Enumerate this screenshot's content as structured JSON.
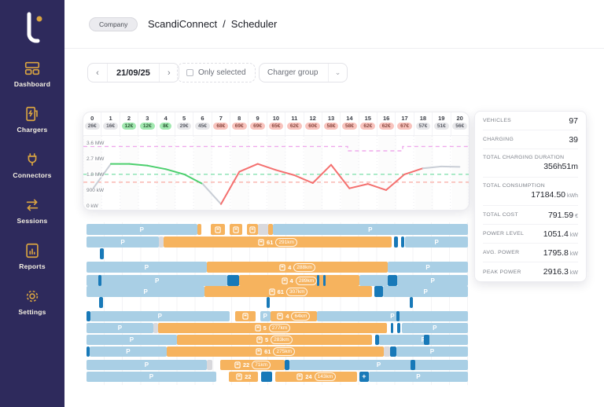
{
  "sidebar": {
    "logo_letter": "t",
    "items": [
      {
        "label": "Dashboard",
        "icon": "dashboard-icon"
      },
      {
        "label": "Chargers",
        "icon": "charger-icon"
      },
      {
        "label": "Connectors",
        "icon": "plug-icon"
      },
      {
        "label": "Sessions",
        "icon": "arrows-swap-icon"
      },
      {
        "label": "Reports",
        "icon": "report-icon"
      },
      {
        "label": "Settings",
        "icon": "gear-icon"
      }
    ]
  },
  "header": {
    "badge": "Company",
    "app_name": "ScandiConnect",
    "separator": "/",
    "page": "Scheduler"
  },
  "controls": {
    "prev": "‹",
    "next": "›",
    "date": "21/09/25",
    "only_selected_label": "Only selected",
    "charger_group_label": "Charger group",
    "chevron": "⌄"
  },
  "chart_data": {
    "type": "line",
    "title": "Hourly charging power schedule with electricity prices",
    "x_hours": [
      0,
      1,
      2,
      3,
      4,
      5,
      6,
      7,
      8,
      9,
      10,
      11,
      12,
      13,
      14,
      15,
      16,
      17,
      18,
      19,
      20
    ],
    "prices_eur": [
      "26€",
      "16€",
      "12€",
      "12€",
      "8€",
      "29€",
      "45€",
      "68€",
      "69€",
      "69€",
      "65€",
      "62€",
      "60€",
      "58€",
      "58€",
      "62€",
      "62€",
      "67€",
      "57€",
      "51€",
      "56€"
    ],
    "price_levels": [
      "neutral",
      "neutral",
      "low",
      "low",
      "low",
      "neutral",
      "neutral",
      "high",
      "high",
      "high",
      "high",
      "high",
      "high",
      "high",
      "high",
      "high",
      "high",
      "high",
      "neutral",
      "neutral",
      "neutral"
    ],
    "power_mw": [
      1.0,
      2.45,
      2.45,
      2.35,
      2.15,
      1.85,
      1.3,
      0.15,
      2.0,
      2.45,
      2.1,
      1.8,
      1.35,
      2.4,
      1.05,
      1.3,
      0.95,
      1.85,
      2.2,
      2.3,
      2.28
    ],
    "segment_colors": [
      "gray",
      "green",
      "green",
      "green",
      "green",
      "green",
      "gray",
      "red",
      "red",
      "red",
      "red",
      "red",
      "red",
      "red",
      "red",
      "red",
      "red",
      "red",
      "gray",
      "gray"
    ],
    "y_ticks": [
      "3.6 MW",
      "2.7 MW",
      "1.8 MW",
      "900 kW",
      "0 kW"
    ],
    "y_tick_values": [
      3.6,
      2.7,
      1.8,
      0.9,
      0
    ],
    "ylim": [
      0,
      4.05
    ],
    "grid": "vertical-dotted",
    "thresholds": {
      "green_dashed_mw": 1.85,
      "red_dashed_mw": 1.4
    },
    "limit_line_mw": [
      {
        "from": 0,
        "to": 14.4,
        "value": 3.45
      },
      {
        "from": 14.4,
        "to": 17.4,
        "value": 3.2
      },
      {
        "from": 17.4,
        "to": 21,
        "value": 3.45
      }
    ]
  },
  "stats": {
    "rows": [
      {
        "label": "VEHICLES",
        "value": "97",
        "unit": "",
        "two_line": false
      },
      {
        "label": "CHARGING",
        "value": "39",
        "unit": "",
        "two_line": false
      },
      {
        "label": "TOTAL CHARGING DURATION",
        "value": "356h51m",
        "unit": "",
        "two_line": true
      },
      {
        "label": "TOTAL CONSUMPTION",
        "value": "17184.50",
        "unit": "kWh",
        "two_line": true
      },
      {
        "label": "TOTAL COST",
        "value": "791.59",
        "unit": "€",
        "two_line": false
      },
      {
        "label": "POWER LEVEL",
        "value": "1051.4",
        "unit": "kW",
        "two_line": false
      },
      {
        "label": "AVG. POWER",
        "value": "1795.8",
        "unit": "kW",
        "two_line": false
      },
      {
        "label": "PEAK POWER",
        "value": "2916.3",
        "unit": "kW",
        "two_line": false
      }
    ]
  },
  "gantt": {
    "parked_label": "P",
    "rows": [
      {
        "segments": [
          {
            "t": "p",
            "s": 0,
            "e": 0.29,
            "label": "P"
          },
          {
            "t": "o",
            "s": 0.29,
            "e": 0.301
          },
          {
            "t": "oi",
            "s": 0.326,
            "e": 0.362
          },
          {
            "t": "oi",
            "s": 0.376,
            "e": 0.408
          },
          {
            "t": "oi",
            "s": 0.421,
            "e": 0.449
          },
          {
            "t": "g",
            "s": 0.449,
            "e": 0.476
          },
          {
            "t": "o",
            "s": 0.476,
            "e": 0.488
          },
          {
            "t": "p",
            "s": 0.488,
            "e": 1,
            "label": "P"
          }
        ]
      },
      {
        "segments": [
          {
            "t": "p",
            "s": 0,
            "e": 0.19,
            "label": "P"
          },
          {
            "t": "g",
            "s": 0.19,
            "e": 0.202
          },
          {
            "t": "ol",
            "s": 0.202,
            "e": 0.8,
            "num": "61",
            "km": "291km"
          },
          {
            "t": "d",
            "s": 0.806,
            "e": 0.816
          },
          {
            "t": "d",
            "s": 0.824,
            "e": 0.832
          },
          {
            "t": "p",
            "s": 0.836,
            "e": 1,
            "label": "P"
          }
        ]
      },
      {
        "segments": [
          {
            "t": "d",
            "s": 0.036,
            "e": 0.046
          }
        ]
      },
      {
        "segments": [
          {
            "t": "p",
            "s": 0,
            "e": 0.315,
            "label": "P"
          },
          {
            "t": "ol",
            "s": 0.315,
            "e": 0.79,
            "num": "4",
            "km": "288km"
          },
          {
            "t": "p",
            "s": 0.79,
            "e": 1,
            "label": "P"
          }
        ]
      },
      {
        "segments": [
          {
            "t": "p",
            "s": 0,
            "e": 0.37,
            "label": "P"
          },
          {
            "t": "d",
            "s": 0.031,
            "e": 0.04
          },
          {
            "t": "d",
            "s": 0.37,
            "e": 0.4
          },
          {
            "t": "ol",
            "s": 0.4,
            "e": 0.715,
            "num": "4",
            "km": "289km"
          },
          {
            "t": "d",
            "s": 0.605,
            "e": 0.611
          },
          {
            "t": "d",
            "s": 0.621,
            "e": 0.627
          },
          {
            "t": "b",
            "s": 0.715,
            "e": 0.79
          },
          {
            "t": "d",
            "s": 0.79,
            "e": 0.815
          },
          {
            "t": "p",
            "s": 0.815,
            "e": 1,
            "label": "P"
          }
        ]
      },
      {
        "segments": [
          {
            "t": "p",
            "s": 0,
            "e": 0.31,
            "label": "P"
          },
          {
            "t": "ol",
            "s": 0.31,
            "e": 0.748,
            "num": "61",
            "km": "307km"
          },
          {
            "t": "d",
            "s": 0.755,
            "e": 0.778
          },
          {
            "t": "p",
            "s": 0.778,
            "e": 1,
            "label": "P"
          }
        ]
      },
      {
        "segments": [
          {
            "t": "d",
            "s": 0.034,
            "e": 0.044
          },
          {
            "t": "d",
            "s": 0.472,
            "e": 0.48
          },
          {
            "t": "d",
            "s": 0.848,
            "e": 0.856
          }
        ]
      },
      {
        "segments": [
          {
            "t": "d",
            "s": 0,
            "e": 0.01
          },
          {
            "t": "p",
            "s": 0.01,
            "e": 0.375,
            "label": "P"
          },
          {
            "t": "oi",
            "s": 0.39,
            "e": 0.443
          },
          {
            "t": "p",
            "s": 0.455,
            "e": 0.482,
            "label": "P"
          },
          {
            "t": "ol",
            "s": 0.482,
            "e": 0.604,
            "num": "4",
            "km": "64km"
          },
          {
            "t": "p",
            "s": 0.604,
            "e": 1,
            "label": "P"
          },
          {
            "t": "d",
            "s": 0.812,
            "e": 0.82
          }
        ]
      },
      {
        "segments": [
          {
            "t": "p",
            "s": 0,
            "e": 0.175,
            "label": "P"
          },
          {
            "t": "g",
            "s": 0.175,
            "e": 0.188
          },
          {
            "t": "ol",
            "s": 0.188,
            "e": 0.787,
            "num": "5",
            "km": "277km"
          },
          {
            "t": "d",
            "s": 0.797,
            "e": 0.805
          },
          {
            "t": "d",
            "s": 0.815,
            "e": 0.822
          },
          {
            "t": "p",
            "s": 0.826,
            "e": 1,
            "label": "P"
          }
        ]
      },
      {
        "segments": [
          {
            "t": "p",
            "s": 0,
            "e": 0.237,
            "label": "P"
          },
          {
            "t": "ol",
            "s": 0.237,
            "e": 0.748,
            "num": "5",
            "km": "283km"
          },
          {
            "t": "d",
            "s": 0.757,
            "e": 0.766
          },
          {
            "t": "p",
            "s": 0.766,
            "e": 1,
            "label": "P"
          },
          {
            "t": "d",
            "s": 0.885,
            "e": 0.9
          }
        ]
      },
      {
        "segments": [
          {
            "t": "d",
            "s": 0,
            "e": 0.008
          },
          {
            "t": "p",
            "s": 0.008,
            "e": 0.21,
            "label": "P"
          },
          {
            "t": "ol",
            "s": 0.21,
            "e": 0.78,
            "num": "61",
            "km": "275km"
          },
          {
            "t": "g",
            "s": 0.78,
            "e": 0.796
          },
          {
            "t": "d",
            "s": 0.796,
            "e": 0.812
          },
          {
            "t": "p",
            "s": 0.812,
            "e": 1,
            "label": "P"
          }
        ]
      },
      {
        "segments": [
          {
            "t": "p",
            "s": 0,
            "e": 0.315,
            "label": "P"
          },
          {
            "t": "g",
            "s": 0.315,
            "e": 0.33
          },
          {
            "t": "ol",
            "s": 0.35,
            "e": 0.52,
            "num": "22",
            "km": "71km"
          },
          {
            "t": "d",
            "s": 0.52,
            "e": 0.532
          },
          {
            "t": "p",
            "s": 0.532,
            "e": 1,
            "label": "P"
          },
          {
            "t": "d",
            "s": 0.85,
            "e": 0.862
          }
        ]
      },
      {
        "segments": [
          {
            "t": "p",
            "s": 0,
            "e": 0.34,
            "label": "P"
          },
          {
            "t": "ol",
            "s": 0.374,
            "e": 0.45,
            "num": "22"
          },
          {
            "t": "d",
            "s": 0.458,
            "e": 0.487
          },
          {
            "t": "ol",
            "s": 0.495,
            "e": 0.71,
            "num": "24",
            "km": "143km"
          },
          {
            "t": "dp",
            "s": 0.715,
            "e": 0.74,
            "plus": "+"
          },
          {
            "t": "p",
            "s": 0.74,
            "e": 1,
            "label": "P"
          }
        ]
      }
    ]
  },
  "colors": {
    "sidebar_bg": "#2E2A5C",
    "accent_gold": "#D9A441",
    "bar_blue": "#A9CFE5",
    "bar_orange": "#F6B35E",
    "bar_dark_blue": "#1879B8",
    "line_green": "#4CCF6E",
    "line_red": "#F4706F",
    "line_gray": "#C9CED6",
    "limit_magenta": "#EFA9EC",
    "threshold_green": "#7ADFA8",
    "threshold_red": "#F9A8A0",
    "grid_line": "#EBEBF0"
  }
}
